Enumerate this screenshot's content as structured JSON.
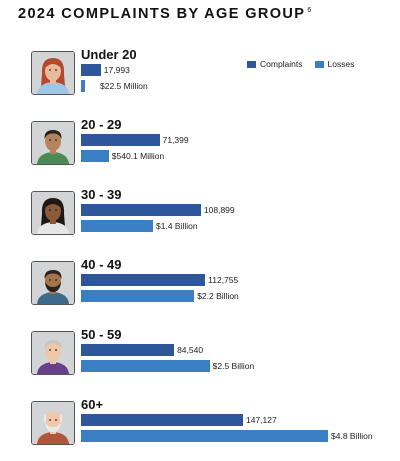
{
  "title": "2024 COMPLAINTS BY AGE GROUP",
  "footnote": "6",
  "colors": {
    "complaints": "#2d579a",
    "losses": "#3a7fc3"
  },
  "chart_data": {
    "type": "bar",
    "title": "2024 COMPLAINTS BY AGE GROUP",
    "categories": [
      "Under 20",
      "20 - 29",
      "30 - 39",
      "40 - 49",
      "50 - 59",
      "60+"
    ],
    "legend_placement": "top-right",
    "series": [
      {
        "name": "Complaints",
        "values": [
          17993,
          71399,
          108899,
          112755,
          84540,
          147127
        ],
        "labels": [
          "17,993",
          "71,399",
          "108,899",
          "112,755",
          "84,540",
          "147,127"
        ]
      },
      {
        "name": "Losses",
        "values": [
          22500000,
          540100000,
          1400000000,
          2200000000,
          2500000000,
          4800000000
        ],
        "labels": [
          "$22.5 Million",
          "$540.1 Million",
          "$1.4 Billion",
          "$2.2 Billion",
          "$2.5 Billion",
          "$4.8 Billion"
        ]
      }
    ],
    "grid": false
  }
}
